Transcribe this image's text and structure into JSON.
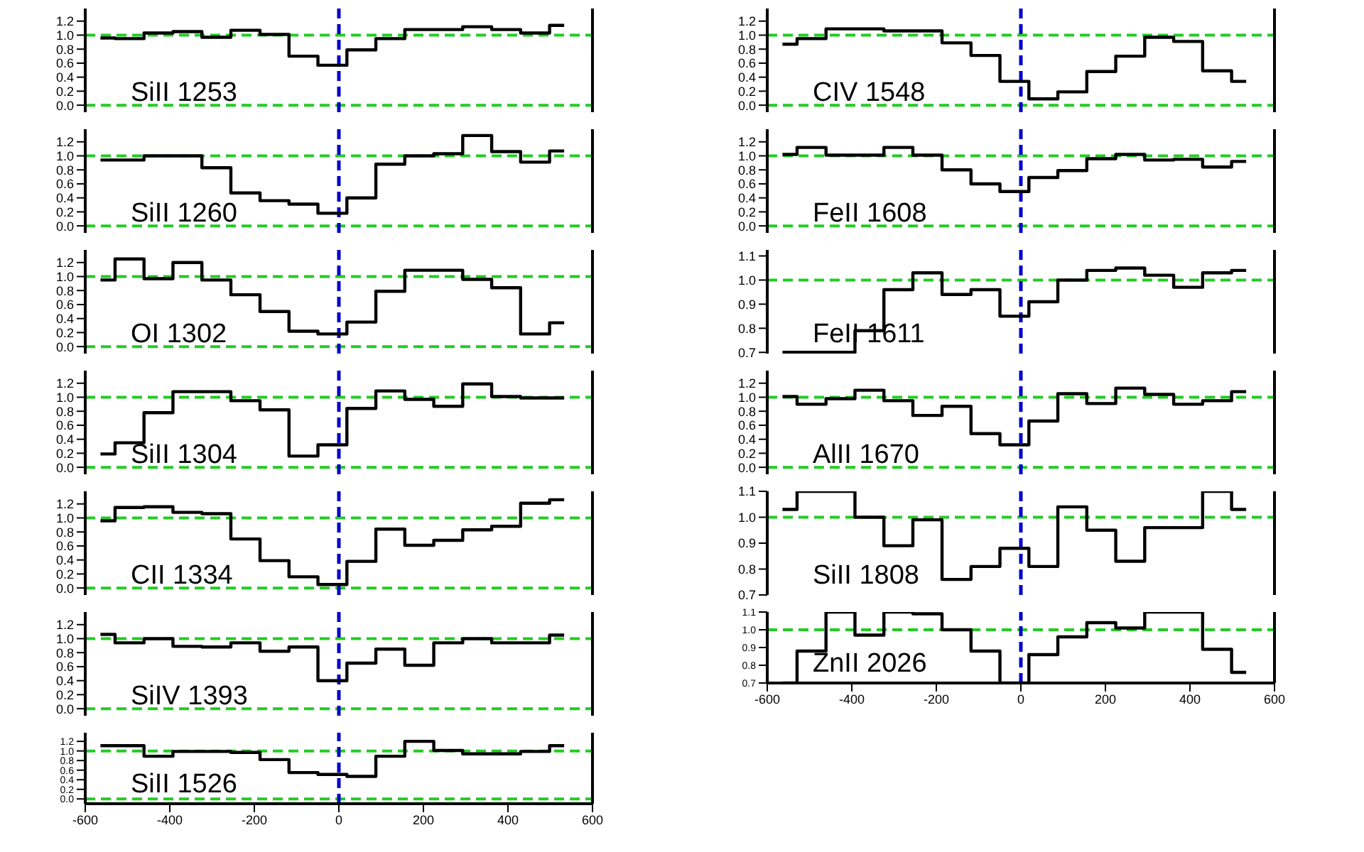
{
  "chart_data": [
    {
      "type": "step",
      "annotations": [
        "SiII 1253"
      ],
      "color": "#000000",
      "marker": "none",
      "tick_labels": "y",
      "xlim": [
        -600,
        600
      ],
      "xticks": [
        -600,
        -400,
        -200,
        0,
        200,
        400,
        600
      ],
      "ylim": [
        -0.1,
        1.38
      ],
      "yticks": [
        {
          "value": 0,
          "label": "0.0"
        },
        {
          "value": 0.2,
          "label": "0.2"
        },
        {
          "value": 0.4,
          "label": "0.4"
        },
        {
          "value": 0.6,
          "label": "0.6"
        },
        {
          "value": 0.8,
          "label": "0.8"
        },
        {
          "value": 1,
          "label": "1.0"
        },
        {
          "value": 1.2,
          "label": "1.2"
        }
      ],
      "ref_lines": [
        {
          "axis": "y",
          "value": 0,
          "color": "#22cc22",
          "line_style": "dashed"
        },
        {
          "axis": "y",
          "value": 1,
          "color": "#22cc22",
          "line_style": "dashed"
        },
        {
          "axis": "x",
          "value": 0,
          "color": "#0000cc",
          "line_style": "dashed"
        }
      ],
      "x": [
        -564,
        -495,
        -427,
        -358,
        -290,
        -221,
        -152,
        -84,
        -15,
        53,
        122,
        190,
        259,
        327,
        396,
        464,
        533
      ],
      "values": [
        0.96,
        0.95,
        1.03,
        1.05,
        0.97,
        1.07,
        1.01,
        0.7,
        0.57,
        0.79,
        0.95,
        1.08,
        1.08,
        1.12,
        1.08,
        1.03,
        1.14
      ]
    },
    {
      "type": "step",
      "annotations": [
        "SiII 1260"
      ],
      "color": "#000000",
      "marker": "none",
      "tick_labels": "y",
      "xlim": [
        -600,
        600
      ],
      "xticks": [
        -600,
        -400,
        -200,
        0,
        200,
        400,
        600
      ],
      "ylim": [
        -0.1,
        1.38
      ],
      "yticks": [
        {
          "value": 0,
          "label": "0.0"
        },
        {
          "value": 0.2,
          "label": "0.2"
        },
        {
          "value": 0.4,
          "label": "0.4"
        },
        {
          "value": 0.6,
          "label": "0.6"
        },
        {
          "value": 0.8,
          "label": "0.8"
        },
        {
          "value": 1,
          "label": "1.0"
        },
        {
          "value": 1.2,
          "label": "1.2"
        }
      ],
      "ref_lines": [
        {
          "axis": "y",
          "value": 0,
          "color": "#22cc22",
          "line_style": "dashed"
        },
        {
          "axis": "y",
          "value": 1,
          "color": "#22cc22",
          "line_style": "dashed"
        },
        {
          "axis": "x",
          "value": 0,
          "color": "#0000cc",
          "line_style": "dashed"
        }
      ],
      "x": [
        -564,
        -495,
        -427,
        -358,
        -290,
        -221,
        -152,
        -84,
        -15,
        53,
        122,
        190,
        259,
        327,
        396,
        464,
        533
      ],
      "values": [
        0.94,
        0.94,
        1.0,
        1.0,
        0.83,
        0.47,
        0.36,
        0.31,
        0.18,
        0.4,
        0.88,
        1.0,
        1.03,
        1.29,
        1.06,
        0.91,
        1.07
      ]
    },
    {
      "type": "step",
      "annotations": [
        "OI 1302"
      ],
      "color": "#000000",
      "marker": "none",
      "tick_labels": "y",
      "xlim": [
        -600,
        600
      ],
      "xticks": [
        -600,
        -400,
        -200,
        0,
        200,
        400,
        600
      ],
      "ylim": [
        -0.1,
        1.38
      ],
      "yticks": [
        {
          "value": 0,
          "label": "0.0"
        },
        {
          "value": 0.2,
          "label": "0.2"
        },
        {
          "value": 0.4,
          "label": "0.4"
        },
        {
          "value": 0.6,
          "label": "0.6"
        },
        {
          "value": 0.8,
          "label": "0.8"
        },
        {
          "value": 1,
          "label": "1.0"
        },
        {
          "value": 1.2,
          "label": "1.2"
        }
      ],
      "ref_lines": [
        {
          "axis": "y",
          "value": 0,
          "color": "#22cc22",
          "line_style": "dashed"
        },
        {
          "axis": "y",
          "value": 1,
          "color": "#22cc22",
          "line_style": "dashed"
        },
        {
          "axis": "x",
          "value": 0,
          "color": "#0000cc",
          "line_style": "dashed"
        }
      ],
      "x": [
        -564,
        -495,
        -427,
        -358,
        -290,
        -221,
        -152,
        -84,
        -15,
        53,
        122,
        190,
        259,
        327,
        396,
        464,
        533
      ],
      "values": [
        0.95,
        1.25,
        0.97,
        1.2,
        0.95,
        0.74,
        0.5,
        0.22,
        0.18,
        0.35,
        0.79,
        1.09,
        1.09,
        0.96,
        0.84,
        0.18,
        0.34
      ]
    },
    {
      "type": "step",
      "annotations": [
        "SiII 1304"
      ],
      "color": "#000000",
      "marker": "none",
      "tick_labels": "y",
      "xlim": [
        -600,
        600
      ],
      "xticks": [
        -600,
        -400,
        -200,
        0,
        200,
        400,
        600
      ],
      "ylim": [
        -0.1,
        1.38
      ],
      "yticks": [
        {
          "value": 0,
          "label": "0.0"
        },
        {
          "value": 0.2,
          "label": "0.2"
        },
        {
          "value": 0.4,
          "label": "0.4"
        },
        {
          "value": 0.6,
          "label": "0.6"
        },
        {
          "value": 0.8,
          "label": "0.8"
        },
        {
          "value": 1,
          "label": "1.0"
        },
        {
          "value": 1.2,
          "label": "1.2"
        }
      ],
      "ref_lines": [
        {
          "axis": "y",
          "value": 0,
          "color": "#22cc22",
          "line_style": "dashed"
        },
        {
          "axis": "y",
          "value": 1,
          "color": "#22cc22",
          "line_style": "dashed"
        },
        {
          "axis": "x",
          "value": 0,
          "color": "#0000cc",
          "line_style": "dashed"
        }
      ],
      "x": [
        -564,
        -495,
        -427,
        -358,
        -290,
        -221,
        -152,
        -84,
        -15,
        53,
        122,
        190,
        259,
        327,
        396,
        464,
        533
      ],
      "values": [
        0.19,
        0.35,
        0.78,
        1.08,
        1.08,
        0.95,
        0.82,
        0.16,
        0.32,
        0.84,
        1.09,
        0.97,
        0.87,
        1.19,
        1.01,
        0.99,
        0.99
      ]
    },
    {
      "type": "step",
      "annotations": [
        "CII 1334"
      ],
      "color": "#000000",
      "marker": "none",
      "tick_labels": "y",
      "xlim": [
        -600,
        600
      ],
      "xticks": [
        -600,
        -400,
        -200,
        0,
        200,
        400,
        600
      ],
      "ylim": [
        -0.1,
        1.38
      ],
      "yticks": [
        {
          "value": 0,
          "label": "0.0"
        },
        {
          "value": 0.2,
          "label": "0.2"
        },
        {
          "value": 0.4,
          "label": "0.4"
        },
        {
          "value": 0.6,
          "label": "0.6"
        },
        {
          "value": 0.8,
          "label": "0.8"
        },
        {
          "value": 1,
          "label": "1.0"
        },
        {
          "value": 1.2,
          "label": "1.2"
        }
      ],
      "ref_lines": [
        {
          "axis": "y",
          "value": 0,
          "color": "#22cc22",
          "line_style": "dashed"
        },
        {
          "axis": "y",
          "value": 1,
          "color": "#22cc22",
          "line_style": "dashed"
        },
        {
          "axis": "x",
          "value": 0,
          "color": "#0000cc",
          "line_style": "dashed"
        }
      ],
      "x": [
        -564,
        -495,
        -427,
        -358,
        -290,
        -221,
        -152,
        -84,
        -15,
        53,
        122,
        190,
        259,
        327,
        396,
        464,
        533
      ],
      "values": [
        0.96,
        1.15,
        1.16,
        1.08,
        1.06,
        0.7,
        0.39,
        0.16,
        0.05,
        0.38,
        0.84,
        0.61,
        0.68,
        0.83,
        0.88,
        1.21,
        1.26
      ]
    },
    {
      "type": "step",
      "annotations": [
        "SiIV 1393"
      ],
      "color": "#000000",
      "marker": "none",
      "tick_labels": "y",
      "xlim": [
        -600,
        600
      ],
      "xticks": [
        -600,
        -400,
        -200,
        0,
        200,
        400,
        600
      ],
      "ylim": [
        -0.1,
        1.38
      ],
      "yticks": [
        {
          "value": 0,
          "label": "0.0"
        },
        {
          "value": 0.2,
          "label": "0.2"
        },
        {
          "value": 0.4,
          "label": "0.4"
        },
        {
          "value": 0.6,
          "label": "0.6"
        },
        {
          "value": 0.8,
          "label": "0.8"
        },
        {
          "value": 1,
          "label": "1.0"
        },
        {
          "value": 1.2,
          "label": "1.2"
        }
      ],
      "ref_lines": [
        {
          "axis": "y",
          "value": 0,
          "color": "#22cc22",
          "line_style": "dashed"
        },
        {
          "axis": "y",
          "value": 1,
          "color": "#22cc22",
          "line_style": "dashed"
        },
        {
          "axis": "x",
          "value": 0,
          "color": "#0000cc",
          "line_style": "dashed"
        }
      ],
      "x": [
        -564,
        -495,
        -427,
        -358,
        -290,
        -221,
        -152,
        -84,
        -15,
        53,
        122,
        190,
        259,
        327,
        396,
        464,
        533
      ],
      "values": [
        1.06,
        0.94,
        1.0,
        0.89,
        0.88,
        0.94,
        0.82,
        0.88,
        0.4,
        0.65,
        0.85,
        0.62,
        0.94,
        1.0,
        0.94,
        0.94,
        1.05
      ]
    },
    {
      "type": "step",
      "annotations": [
        "SiII 1526"
      ],
      "color": "#000000",
      "marker": "none",
      "xlim": [
        -600,
        600
      ],
      "xticks": [
        -600,
        -400,
        -200,
        0,
        200,
        400,
        600
      ],
      "ylim": [
        -0.1,
        1.38
      ],
      "yticks": [
        {
          "value": 0,
          "label": "0.0"
        },
        {
          "value": 0.2,
          "label": "0.2"
        },
        {
          "value": 0.4,
          "label": "0.4"
        },
        {
          "value": 0.6,
          "label": "0.6"
        },
        {
          "value": 0.8,
          "label": "0.8"
        },
        {
          "value": 1,
          "label": "1.0"
        },
        {
          "value": 1.2,
          "label": "1.2"
        }
      ],
      "ref_lines": [
        {
          "axis": "y",
          "value": 0,
          "color": "#22cc22",
          "line_style": "dashed"
        },
        {
          "axis": "y",
          "value": 1,
          "color": "#22cc22",
          "line_style": "dashed"
        },
        {
          "axis": "x",
          "value": 0,
          "color": "#0000cc",
          "line_style": "dashed"
        }
      ],
      "x": [
        -564,
        -495,
        -427,
        -358,
        -290,
        -221,
        -152,
        -84,
        -15,
        53,
        122,
        190,
        259,
        327,
        396,
        464,
        533
      ],
      "values": [
        1.11,
        1.11,
        0.89,
        0.99,
        0.99,
        0.97,
        0.82,
        0.55,
        0.51,
        0.47,
        0.89,
        1.2,
        1.01,
        0.94,
        0.94,
        0.99,
        1.11
      ]
    },
    {
      "type": "step",
      "annotations": [
        "CIV 1548"
      ],
      "color": "#000000",
      "marker": "none",
      "tick_labels": "y",
      "xlim": [
        -600,
        600
      ],
      "xticks": [
        -600,
        -400,
        -200,
        0,
        200,
        400,
        600
      ],
      "ylim": [
        -0.1,
        1.38
      ],
      "yticks": [
        {
          "value": 0,
          "label": "0.0"
        },
        {
          "value": 0.2,
          "label": "0.2"
        },
        {
          "value": 0.4,
          "label": "0.4"
        },
        {
          "value": 0.6,
          "label": "0.6"
        },
        {
          "value": 0.8,
          "label": "0.8"
        },
        {
          "value": 1,
          "label": "1.0"
        },
        {
          "value": 1.2,
          "label": "1.2"
        }
      ],
      "ref_lines": [
        {
          "axis": "y",
          "value": 0,
          "color": "#22cc22",
          "line_style": "dashed"
        },
        {
          "axis": "y",
          "value": 1,
          "color": "#22cc22",
          "line_style": "dashed"
        },
        {
          "axis": "x",
          "value": 0,
          "color": "#0000cc",
          "line_style": "dashed"
        }
      ],
      "x": [
        -564,
        -495,
        -427,
        -358,
        -290,
        -221,
        -152,
        -84,
        -15,
        53,
        122,
        190,
        259,
        327,
        396,
        464,
        533
      ],
      "values": [
        0.87,
        0.95,
        1.09,
        1.09,
        1.06,
        1.06,
        0.89,
        0.71,
        0.34,
        0.09,
        0.19,
        0.48,
        0.7,
        0.97,
        0.91,
        0.49,
        0.34
      ]
    },
    {
      "type": "step",
      "annotations": [
        "FeII 1608"
      ],
      "color": "#000000",
      "marker": "none",
      "tick_labels": "y",
      "xlim": [
        -600,
        600
      ],
      "xticks": [
        -600,
        -400,
        -200,
        0,
        200,
        400,
        600
      ],
      "ylim": [
        -0.1,
        1.38
      ],
      "yticks": [
        {
          "value": 0,
          "label": "0.0"
        },
        {
          "value": 0.2,
          "label": "0.2"
        },
        {
          "value": 0.4,
          "label": "0.4"
        },
        {
          "value": 0.6,
          "label": "0.6"
        },
        {
          "value": 0.8,
          "label": "0.8"
        },
        {
          "value": 1,
          "label": "1.0"
        },
        {
          "value": 1.2,
          "label": "1.2"
        }
      ],
      "ref_lines": [
        {
          "axis": "y",
          "value": 0,
          "color": "#22cc22",
          "line_style": "dashed"
        },
        {
          "axis": "y",
          "value": 1,
          "color": "#22cc22",
          "line_style": "dashed"
        },
        {
          "axis": "x",
          "value": 0,
          "color": "#0000cc",
          "line_style": "dashed"
        }
      ],
      "x": [
        -564,
        -495,
        -427,
        -358,
        -290,
        -221,
        -152,
        -84,
        -15,
        53,
        122,
        190,
        259,
        327,
        396,
        464,
        533
      ],
      "values": [
        1.02,
        1.12,
        1.01,
        1.01,
        1.12,
        1.01,
        0.8,
        0.6,
        0.49,
        0.69,
        0.79,
        0.96,
        1.02,
        0.94,
        0.95,
        0.84,
        0.92
      ]
    },
    {
      "type": "step",
      "annotations": [
        "FeII 1611"
      ],
      "color": "#000000",
      "marker": "none",
      "tick_labels": "y",
      "xlim": [
        -600,
        600
      ],
      "xticks": [
        -600,
        -400,
        -200,
        0,
        200,
        400,
        600
      ],
      "ylim": [
        0.695,
        1.125
      ],
      "yticks": [
        {
          "value": 0.7,
          "label": "0.7"
        },
        {
          "value": 0.8,
          "label": "0.8"
        },
        {
          "value": 0.9,
          "label": "0.9"
        },
        {
          "value": 1,
          "label": "1.0"
        },
        {
          "value": 1.1,
          "label": "1.1"
        }
      ],
      "ref_lines": [
        {
          "axis": "y",
          "value": 1,
          "color": "#22cc22",
          "line_style": "dashed"
        },
        {
          "axis": "x",
          "value": 0,
          "color": "#0000cc",
          "line_style": "dashed"
        }
      ],
      "x": [
        -564,
        -495,
        -427,
        -358,
        -290,
        -221,
        -152,
        -84,
        -15,
        53,
        122,
        190,
        259,
        327,
        396,
        464,
        533
      ],
      "values": [
        0.7,
        0.7,
        0.7,
        0.79,
        0.96,
        1.03,
        0.94,
        0.96,
        0.85,
        0.91,
        1.0,
        1.04,
        1.05,
        1.02,
        0.97,
        1.03,
        1.04
      ]
    },
    {
      "type": "step",
      "annotations": [
        "AlII 1670"
      ],
      "color": "#000000",
      "marker": "none",
      "tick_labels": "y",
      "xlim": [
        -600,
        600
      ],
      "xticks": [
        -600,
        -400,
        -200,
        0,
        200,
        400,
        600
      ],
      "ylim": [
        -0.1,
        1.38
      ],
      "yticks": [
        {
          "value": 0,
          "label": "0.0"
        },
        {
          "value": 0.2,
          "label": "0.2"
        },
        {
          "value": 0.4,
          "label": "0.4"
        },
        {
          "value": 0.6,
          "label": "0.6"
        },
        {
          "value": 0.8,
          "label": "0.8"
        },
        {
          "value": 1,
          "label": "1.0"
        },
        {
          "value": 1.2,
          "label": "1.2"
        }
      ],
      "ref_lines": [
        {
          "axis": "y",
          "value": 0,
          "color": "#22cc22",
          "line_style": "dashed"
        },
        {
          "axis": "y",
          "value": 1,
          "color": "#22cc22",
          "line_style": "dashed"
        },
        {
          "axis": "x",
          "value": 0,
          "color": "#0000cc",
          "line_style": "dashed"
        }
      ],
      "x": [
        -564,
        -495,
        -427,
        -358,
        -290,
        -221,
        -152,
        -84,
        -15,
        53,
        122,
        190,
        259,
        327,
        396,
        464,
        533
      ],
      "values": [
        1.01,
        0.9,
        0.98,
        1.1,
        0.95,
        0.74,
        0.87,
        0.48,
        0.32,
        0.66,
        1.05,
        0.91,
        1.13,
        1.04,
        0.9,
        0.95,
        1.08
      ]
    },
    {
      "type": "step",
      "annotations": [
        "SiII 1808"
      ],
      "color": "#000000",
      "marker": "none",
      "tick_labels": "y",
      "xlim": [
        -600,
        600
      ],
      "xticks": [
        -600,
        -400,
        -200,
        0,
        200,
        400,
        600
      ],
      "ylim": [
        0.7,
        1.1
      ],
      "yticks": [
        {
          "value": 0.7,
          "label": "0.7"
        },
        {
          "value": 0.8,
          "label": "0.8"
        },
        {
          "value": 0.9,
          "label": "0.9"
        },
        {
          "value": 1,
          "label": "1.0"
        },
        {
          "value": 1.1,
          "label": "1.1"
        }
      ],
      "ref_lines": [
        {
          "axis": "y",
          "value": 1,
          "color": "#22cc22",
          "line_style": "dashed"
        },
        {
          "axis": "x",
          "value": 0,
          "color": "#0000cc",
          "line_style": "dashed"
        }
      ],
      "x": [
        -564,
        -495,
        -427,
        -358,
        -290,
        -221,
        -152,
        -84,
        -15,
        53,
        122,
        190,
        259,
        327,
        396,
        464,
        533
      ],
      "values": [
        1.03,
        1.1,
        1.1,
        1.0,
        0.89,
        0.99,
        0.76,
        0.81,
        0.88,
        0.81,
        1.04,
        0.95,
        0.83,
        0.96,
        0.96,
        1.1,
        1.03
      ]
    },
    {
      "type": "step",
      "annotations": [
        "ZnII 2026"
      ],
      "color": "#000000",
      "marker": "none",
      "xlim": [
        -600,
        600
      ],
      "xticks": [
        -600,
        -400,
        -200,
        0,
        200,
        400,
        600
      ],
      "ylim": [
        0.7,
        1.1
      ],
      "yticks": [
        {
          "value": 0.7,
          "label": "0.7"
        },
        {
          "value": 0.8,
          "label": "0.8"
        },
        {
          "value": 0.9,
          "label": "0.9"
        },
        {
          "value": 1,
          "label": "1.0"
        },
        {
          "value": 1.1,
          "label": "1.1"
        }
      ],
      "ref_lines": [
        {
          "axis": "y",
          "value": 1,
          "color": "#22cc22",
          "line_style": "dashed"
        },
        {
          "axis": "x",
          "value": 0,
          "color": "#0000cc",
          "line_style": "dashed"
        }
      ],
      "x": [
        -564,
        -495,
        -427,
        -358,
        -290,
        -221,
        -152,
        -84,
        -15,
        53,
        122,
        190,
        259,
        327,
        396,
        464,
        533
      ],
      "values": [
        0.7,
        0.88,
        1.1,
        0.97,
        1.1,
        1.09,
        1.0,
        0.88,
        0.7,
        0.86,
        0.96,
        1.04,
        1.01,
        1.1,
        1.1,
        0.89,
        0.76
      ]
    }
  ]
}
